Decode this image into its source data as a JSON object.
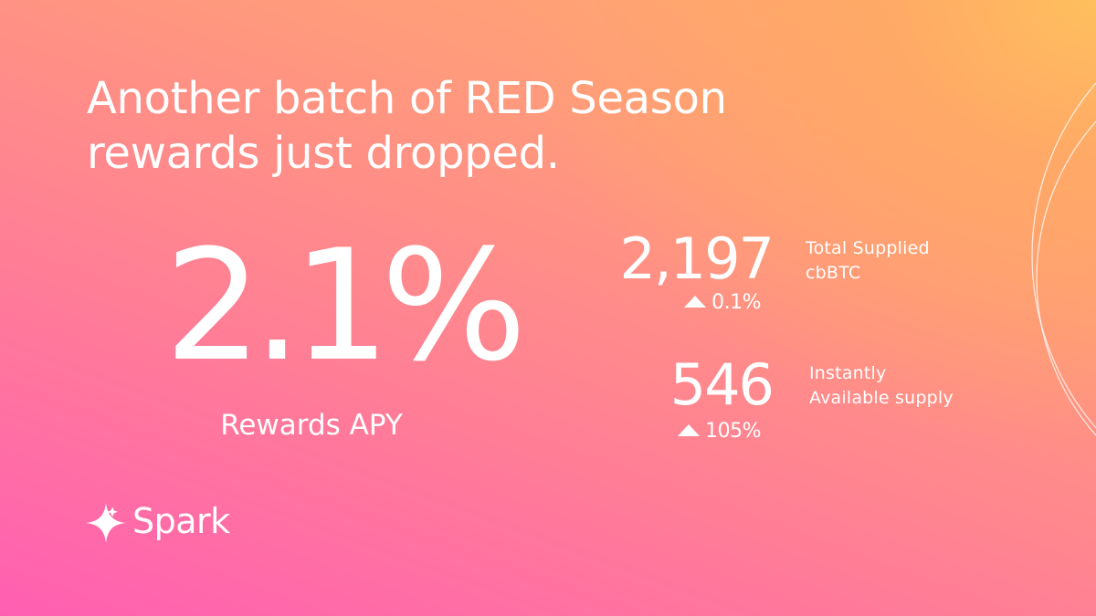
{
  "headline": {
    "line1": "Another batch of RED Season",
    "line2": "rewards just dropped."
  },
  "apy": {
    "value": "2.1%",
    "label": "Rewards APY"
  },
  "stats": [
    {
      "value": "2,197",
      "delta": "0.1%",
      "label_line1": "Total Supplied",
      "label_line2": "cbBTC"
    },
    {
      "value": "546",
      "delta": "105%",
      "label_line1": "Instantly",
      "label_line2": "Available supply"
    }
  ],
  "brand": {
    "name": "Spark",
    "icon": "spark-star-icon"
  },
  "colors": {
    "text": "#ffffff",
    "gradient_top_right": "#ffbf5e",
    "gradient_mid": "#ff9a7c",
    "gradient_bottom_left": "#ff5fb2"
  }
}
